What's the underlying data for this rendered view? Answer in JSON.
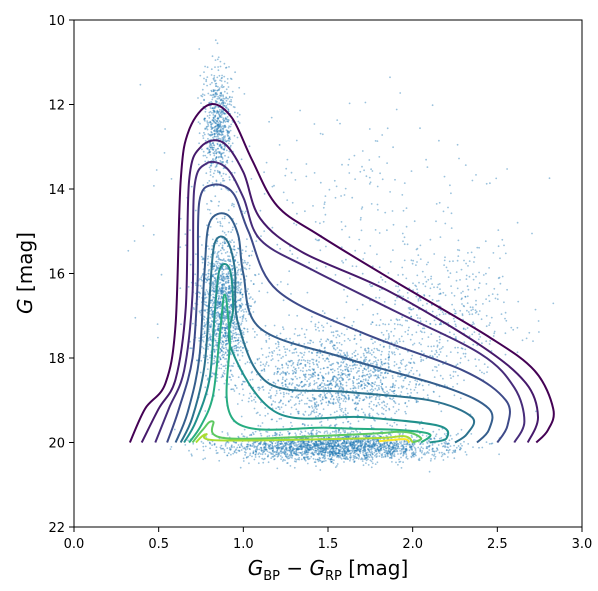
{
  "chart_data": {
    "type": "scatter",
    "title": "",
    "xlabel": {
      "main": "G",
      "sub1": "BP",
      "minus": " − ",
      "main2": "G",
      "sub2": "RP",
      "unit": " [mag]"
    },
    "ylabel": {
      "main": "G",
      "unit": " [mag]"
    },
    "xlim": [
      0.0,
      3.0
    ],
    "ylim": [
      22,
      10
    ],
    "y_inverted": true,
    "x_ticks": [
      "0.0",
      "0.5",
      "1.0",
      "1.5",
      "2.0",
      "2.5",
      "3.0"
    ],
    "y_ticks": [
      "10",
      "12",
      "14",
      "16",
      "18",
      "20",
      "22"
    ],
    "grid": false,
    "legend": "none",
    "scatter": {
      "color": "#1f77b4",
      "description_points": [
        {
          "x": 0.85,
          "y": 11.5
        },
        {
          "x": 0.9,
          "y": 16.0
        },
        {
          "x": 0.75,
          "y": 19.5
        },
        {
          "x": 1.5,
          "y": 18.5
        },
        {
          "x": 2.0,
          "y": 20.0
        },
        {
          "x": 2.5,
          "y": 19.0
        },
        {
          "x": 1.2,
          "y": 20.3
        },
        {
          "x": 2.8,
          "y": 20.2
        }
      ]
    },
    "contours": {
      "colormap": "viridis",
      "levels": [
        {
          "color": "#440154",
          "points": [
            [
              0.33,
              20.0
            ],
            [
              0.42,
              19.2
            ],
            [
              0.54,
              18.6
            ],
            [
              0.6,
              17.2
            ],
            [
              0.63,
              13.8
            ],
            [
              0.68,
              12.6
            ],
            [
              0.8,
              12.0
            ],
            [
              0.93,
              12.3
            ],
            [
              1.05,
              13.3
            ],
            [
              1.2,
              14.4
            ],
            [
              1.45,
              15.1
            ],
            [
              1.9,
              16.2
            ],
            [
              2.45,
              17.5
            ],
            [
              2.72,
              18.3
            ],
            [
              2.83,
              19.2
            ],
            [
              2.8,
              19.7
            ],
            [
              2.73,
              20.0
            ]
          ]
        },
        {
          "color": "#46196b",
          "points": [
            [
              0.4,
              20.0
            ],
            [
              0.5,
              19.2
            ],
            [
              0.6,
              18.5
            ],
            [
              0.66,
              16.8
            ],
            [
              0.68,
              13.8
            ],
            [
              0.75,
              13.0
            ],
            [
              0.88,
              12.9
            ],
            [
              1.0,
              13.6
            ],
            [
              1.1,
              14.7
            ],
            [
              1.35,
              15.5
            ],
            [
              1.85,
              16.4
            ],
            [
              2.4,
              17.7
            ],
            [
              2.67,
              18.6
            ],
            [
              2.74,
              19.4
            ],
            [
              2.68,
              20.0
            ]
          ]
        },
        {
          "color": "#472c7a",
          "points": [
            [
              0.48,
              20.0
            ],
            [
              0.56,
              19.2
            ],
            [
              0.65,
              18.3
            ],
            [
              0.7,
              16.5
            ],
            [
              0.71,
              14.0
            ],
            [
              0.78,
              13.4
            ],
            [
              0.9,
              13.5
            ],
            [
              1.0,
              14.2
            ],
            [
              1.1,
              15.2
            ],
            [
              1.4,
              15.9
            ],
            [
              1.9,
              16.9
            ],
            [
              2.4,
              17.9
            ],
            [
              2.6,
              18.7
            ],
            [
              2.66,
              19.5
            ],
            [
              2.6,
              20.0
            ]
          ]
        },
        {
          "color": "#3e4a89",
          "points": [
            [
              0.55,
              20.0
            ],
            [
              0.62,
              19.2
            ],
            [
              0.7,
              18.0
            ],
            [
              0.73,
              16.2
            ],
            [
              0.74,
              14.3
            ],
            [
              0.82,
              13.9
            ],
            [
              0.94,
              14.1
            ],
            [
              1.03,
              15.0
            ],
            [
              1.2,
              16.4
            ],
            [
              1.7,
              17.4
            ],
            [
              2.3,
              18.3
            ],
            [
              2.55,
              19.0
            ],
            [
              2.56,
              19.6
            ],
            [
              2.5,
              20.0
            ]
          ]
        },
        {
          "color": "#355e8d",
          "points": [
            [
              0.6,
              20.0
            ],
            [
              0.67,
              19.3
            ],
            [
              0.74,
              18.0
            ],
            [
              0.77,
              16.0
            ],
            [
              0.8,
              14.8
            ],
            [
              0.9,
              14.6
            ],
            [
              0.97,
              15.1
            ],
            [
              1.0,
              16.0
            ],
            [
              1.1,
              17.3
            ],
            [
              1.6,
              18.0
            ],
            [
              2.2,
              18.7
            ],
            [
              2.45,
              19.2
            ],
            [
              2.45,
              19.7
            ],
            [
              2.38,
              20.0
            ]
          ]
        },
        {
          "color": "#2c728e",
          "points": [
            [
              0.63,
              20.0
            ],
            [
              0.7,
              19.4
            ],
            [
              0.77,
              18.2
            ],
            [
              0.8,
              16.6
            ],
            [
              0.83,
              15.3
            ],
            [
              0.9,
              15.2
            ],
            [
              0.95,
              15.9
            ],
            [
              0.97,
              17.2
            ],
            [
              1.15,
              18.6
            ],
            [
              1.6,
              18.8
            ],
            [
              2.1,
              19.0
            ],
            [
              2.35,
              19.4
            ],
            [
              2.32,
              19.8
            ],
            [
              2.25,
              20.0
            ]
          ]
        },
        {
          "color": "#21918c",
          "points": [
            [
              0.65,
              20.0
            ],
            [
              0.72,
              19.5
            ],
            [
              0.8,
              18.5
            ],
            [
              0.83,
              17.0
            ],
            [
              0.86,
              15.9
            ],
            [
              0.92,
              15.9
            ],
            [
              0.94,
              16.8
            ],
            [
              0.93,
              17.8
            ],
            [
              1.2,
              19.3
            ],
            [
              1.7,
              19.4
            ],
            [
              2.15,
              19.6
            ],
            [
              2.2,
              19.9
            ],
            [
              2.1,
              20.0
            ]
          ]
        },
        {
          "color": "#27ad81",
          "points": [
            [
              0.68,
              20.0
            ],
            [
              0.75,
              19.6
            ],
            [
              0.82,
              18.9
            ],
            [
              0.86,
              17.5
            ],
            [
              0.89,
              16.5
            ],
            [
              0.92,
              17.5
            ],
            [
              0.95,
              19.5
            ],
            [
              1.5,
              19.65
            ],
            [
              1.9,
              19.7
            ],
            [
              2.1,
              19.8
            ],
            [
              2.05,
              20.0
            ]
          ]
        },
        {
          "color": "#5ec962",
          "points": [
            [
              0.7,
              20.0
            ],
            [
              0.76,
              19.7
            ],
            [
              0.82,
              19.5
            ],
            [
              0.9,
              19.9
            ],
            [
              1.7,
              19.8
            ],
            [
              1.95,
              19.75
            ],
            [
              2.05,
              19.9
            ],
            [
              2.0,
              20.0
            ]
          ]
        },
        {
          "color": "#aadc32",
          "points": [
            [
              0.72,
              20.0
            ],
            [
              0.78,
              19.8
            ],
            [
              0.86,
              19.95
            ],
            [
              1.75,
              19.9
            ],
            [
              1.95,
              19.85
            ],
            [
              2.0,
              20.0
            ]
          ]
        },
        {
          "color": "#fde725",
          "points": [
            [
              1.8,
              19.97
            ],
            [
              1.95,
              19.92
            ],
            [
              1.98,
              20.0
            ]
          ]
        }
      ]
    }
  }
}
